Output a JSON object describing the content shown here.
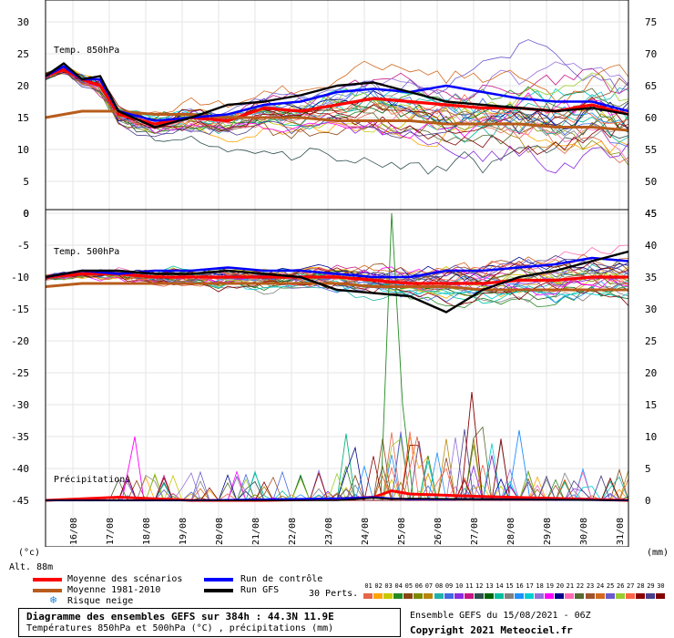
{
  "chart_data": [
    {
      "type": "line",
      "title": "Temp. 850hPa",
      "ylim": [
        0,
        30
      ],
      "left_ticks": [
        "30",
        "25",
        "20",
        "15",
        "10",
        "5",
        "0"
      ],
      "right_ticks": [
        "75",
        "70",
        "65",
        "60",
        "55",
        "50",
        "45"
      ],
      "x_start": "15/08 06Z",
      "x_end": "31/08 06Z",
      "series": [
        {
          "name": "Moyenne des scénarios",
          "x": [
            0,
            0.5,
            1,
            1.5,
            2,
            3,
            4,
            5,
            6,
            7,
            8,
            9,
            10,
            11,
            12,
            13,
            14,
            15,
            16
          ],
          "values": [
            21.5,
            22.5,
            21,
            20,
            15.5,
            14,
            15,
            14.5,
            16.5,
            16,
            17,
            18,
            17.5,
            17,
            16.5,
            16.5,
            16,
            17,
            15.5
          ]
        },
        {
          "name": "Moyenne 1981-2010",
          "x": [
            0,
            1,
            2,
            3,
            4,
            5,
            6,
            7,
            8,
            9,
            10,
            11,
            12,
            13,
            14,
            15,
            16
          ],
          "values": [
            15,
            16,
            16,
            15.5,
            15.5,
            15,
            15,
            15,
            14.5,
            14.5,
            14.5,
            14,
            14,
            14,
            13.5,
            13.5,
            13
          ]
        },
        {
          "name": "Run de contrôle",
          "x": [
            0,
            0.5,
            1,
            1.5,
            2,
            3,
            4,
            5,
            6,
            7,
            8,
            9,
            10,
            11,
            12,
            13,
            14,
            15,
            16
          ],
          "values": [
            21.5,
            23,
            21,
            21,
            16,
            14.5,
            15,
            15.5,
            17,
            17.5,
            19,
            19.5,
            19,
            20,
            19,
            18,
            17.5,
            17.5,
            16
          ]
        },
        {
          "name": "Run GFS",
          "x": [
            0,
            0.5,
            1,
            1.5,
            2,
            3,
            4,
            5,
            6,
            7,
            8,
            9,
            10,
            11,
            12,
            13,
            14,
            15,
            16
          ],
          "values": [
            21.5,
            23.5,
            21,
            21.5,
            16,
            13.5,
            15,
            17,
            17.5,
            18.5,
            20,
            20.5,
            19,
            17.5,
            17,
            16.5,
            16,
            16.5,
            15.5
          ]
        }
      ]
    },
    {
      "type": "line",
      "title": "Temp. 500hPa",
      "ylim": [
        -45,
        0
      ],
      "left_ticks": [
        "0",
        "-5",
        "-10",
        "-15",
        "-20",
        "-25",
        "-30",
        "-35",
        "-40",
        "-45"
      ],
      "right_ticks": [
        "45",
        "40",
        "35",
        "30",
        "25",
        "20",
        "15",
        "10",
        "5",
        "0"
      ],
      "series": [
        {
          "name": "Moyenne des scénarios",
          "x": [
            0,
            1,
            2,
            3,
            4,
            5,
            6,
            7,
            8,
            9,
            10,
            11,
            12,
            13,
            14,
            15,
            16
          ],
          "values": [
            -10,
            -9.5,
            -9.5,
            -10,
            -10,
            -10,
            -10,
            -10,
            -10,
            -10.5,
            -11,
            -11,
            -11,
            -10.5,
            -10.5,
            -10,
            -10
          ]
        },
        {
          "name": "Moyenne 1981-2010",
          "x": [
            0,
            1,
            2,
            3,
            4,
            5,
            6,
            7,
            8,
            9,
            10,
            11,
            12,
            13,
            14,
            15,
            16
          ],
          "values": [
            -11.5,
            -11,
            -11,
            -11,
            -11,
            -11,
            -11,
            -11,
            -11,
            -11.5,
            -11.5,
            -11.5,
            -12,
            -12,
            -12,
            -12,
            -12
          ]
        },
        {
          "name": "Run de contrôle",
          "x": [
            0,
            1,
            2,
            3,
            4,
            5,
            6,
            7,
            8,
            9,
            10,
            11,
            12,
            13,
            14,
            15,
            16
          ],
          "values": [
            -10,
            -9,
            -9.5,
            -9,
            -9,
            -8.5,
            -9,
            -9,
            -9.5,
            -10,
            -10,
            -9,
            -9,
            -8.5,
            -8,
            -7,
            -7.5
          ]
        },
        {
          "name": "Run GFS",
          "x": [
            0,
            1,
            2,
            3,
            4,
            5,
            6,
            7,
            8,
            9,
            10,
            11,
            12,
            13,
            14,
            15,
            16
          ],
          "values": [
            -10,
            -9,
            -9,
            -9.5,
            -9.5,
            -9,
            -9.5,
            -10,
            -12,
            -12.5,
            -13,
            -15.5,
            -12,
            -10,
            -9,
            -7.5,
            -6
          ]
        }
      ]
    },
    {
      "type": "line",
      "title": "Précipitations",
      "ylim": [
        0,
        45
      ],
      "series": [
        {
          "name": "Moyenne des scénarios",
          "x": [
            0,
            2,
            4,
            6,
            8,
            9,
            9.5,
            10,
            11,
            12,
            14,
            16
          ],
          "values": [
            0,
            0.5,
            0,
            0,
            0.2,
            0.5,
            1.5,
            1,
            0.8,
            0.6,
            0.3,
            0
          ]
        },
        {
          "name": "Run de contrôle",
          "x": [
            0,
            4,
            8,
            9,
            9.5,
            10,
            12,
            16
          ],
          "values": [
            0,
            0,
            0.3,
            0.5,
            0.3,
            0.2,
            0.2,
            0
          ]
        },
        {
          "name": "Run GFS",
          "x": [
            0,
            4,
            8,
            9,
            9.5,
            10,
            12,
            16
          ],
          "values": [
            0,
            0,
            0,
            0.4,
            0.2,
            0.3,
            0.2,
            0
          ]
        }
      ]
    }
  ],
  "x_axis": {
    "labels": [
      "16/08",
      "17/08",
      "18/08",
      "19/08",
      "20/08",
      "21/08",
      "22/08",
      "23/08",
      "24/08",
      "25/08",
      "26/08",
      "27/08",
      "28/08",
      "29/08",
      "30/08",
      "31/08"
    ],
    "left_unit": "(°c)",
    "right_unit": "(mm)"
  },
  "labels": {
    "alt": "Alt. 88m",
    "perts": "30 Perts.",
    "run_info": "Ensemble GEFS du 15/08/2021 - 06Z",
    "copyright": "Copyright 2021 Meteociel.fr",
    "title_main": "Diagramme des ensembles GEFS sur 384h : 44.3N 11.9E",
    "title_sub": "Températures 850hPa et 500hPa (°C) , précipitations (mm)"
  },
  "legend": [
    {
      "label": "Moyenne des scénarios",
      "color": "#ff0000"
    },
    {
      "label": "Moyenne 1981-2010",
      "color": "#b85c1b"
    },
    {
      "label": "Risque neige",
      "color": "#2288dd"
    },
    {
      "label": "Run de contrôle",
      "color": "#0000ff"
    },
    {
      "label": "Run GFS",
      "color": "#000000"
    }
  ],
  "perturbations": {
    "numbers": [
      "01",
      "02",
      "03",
      "04",
      "05",
      "06",
      "07",
      "08",
      "09",
      "10",
      "11",
      "12",
      "13",
      "14",
      "15",
      "16",
      "17",
      "18",
      "19",
      "20",
      "21",
      "22",
      "23",
      "24",
      "25",
      "26",
      "27",
      "28",
      "29",
      "30"
    ],
    "colors": [
      "#e5664a",
      "#ffa500",
      "#c8c800",
      "#228b22",
      "#8b4513",
      "#7b8b00",
      "#b8860b",
      "#20b2aa",
      "#4169e1",
      "#8a2be2",
      "#c71585",
      "#2f4f4f",
      "#006400",
      "#00bfa0",
      "#808080",
      "#1e90ff",
      "#00ced1",
      "#9370db",
      "#ff00ff",
      "#00008b",
      "#ff69b4",
      "#556b2f",
      "#a0522d",
      "#d2691e",
      "#6a5acd",
      "#9acd32",
      "#ff6347",
      "#8b0000",
      "#483d8b",
      "#800000"
    ]
  }
}
